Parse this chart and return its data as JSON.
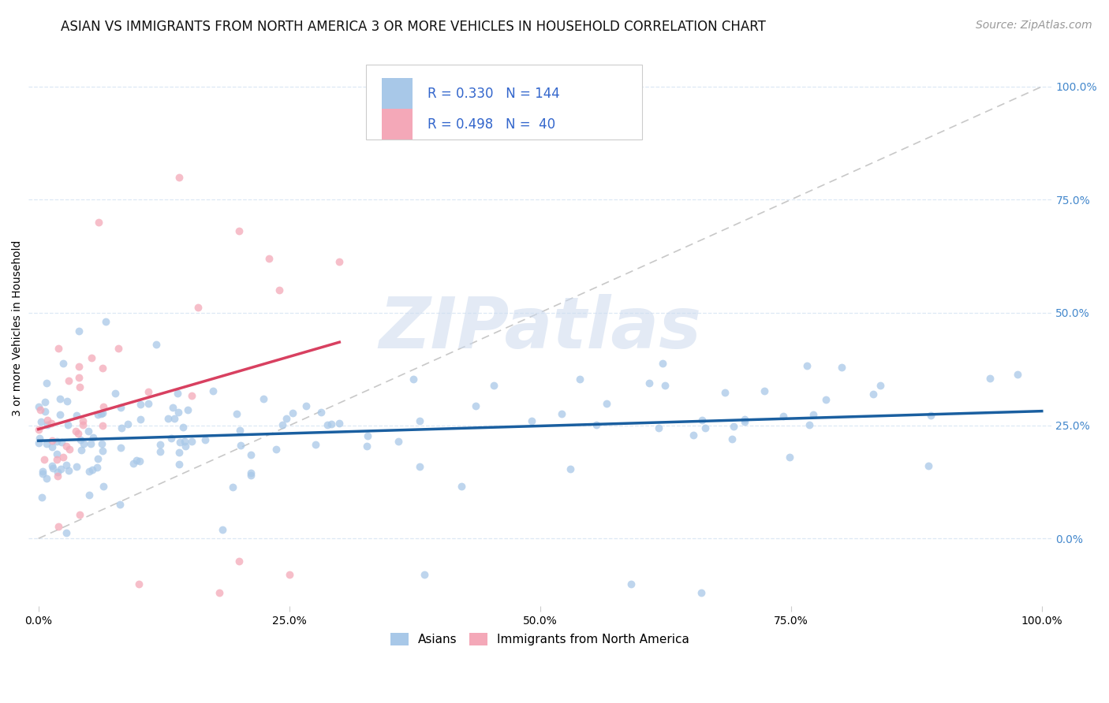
{
  "title": "ASIAN VS IMMIGRANTS FROM NORTH AMERICA 3 OR MORE VEHICLES IN HOUSEHOLD CORRELATION CHART",
  "source": "Source: ZipAtlas.com",
  "ylabel": "3 or more Vehicles in Household",
  "xlim": [
    -1,
    101
  ],
  "ylim": [
    -15,
    108
  ],
  "ytick_labels": [
    "0.0%",
    "25.0%",
    "50.0%",
    "75.0%",
    "100.0%"
  ],
  "ytick_values": [
    0,
    25,
    50,
    75,
    100
  ],
  "xtick_labels": [
    "0.0%",
    "25.0%",
    "50.0%",
    "75.0%",
    "100.0%"
  ],
  "xtick_values": [
    0,
    25,
    50,
    75,
    100
  ],
  "asian_R": 0.33,
  "asian_N": 144,
  "immigrant_R": 0.498,
  "immigrant_N": 40,
  "blue_dot_color": "#a8c8e8",
  "pink_dot_color": "#f4a8b8",
  "blue_line_color": "#1a5fa0",
  "pink_line_color": "#d84060",
  "diagonal_color": "#c8c8c8",
  "grid_color": "#dde8f5",
  "watermark_text": "ZIPatlas",
  "watermark_color": "#ccdaee",
  "background_color": "#ffffff",
  "right_tick_color": "#4488cc",
  "legend_text_color": "#3366cc",
  "title_fontsize": 12,
  "tick_fontsize": 10,
  "source_fontsize": 10,
  "legend_fontsize": 12
}
